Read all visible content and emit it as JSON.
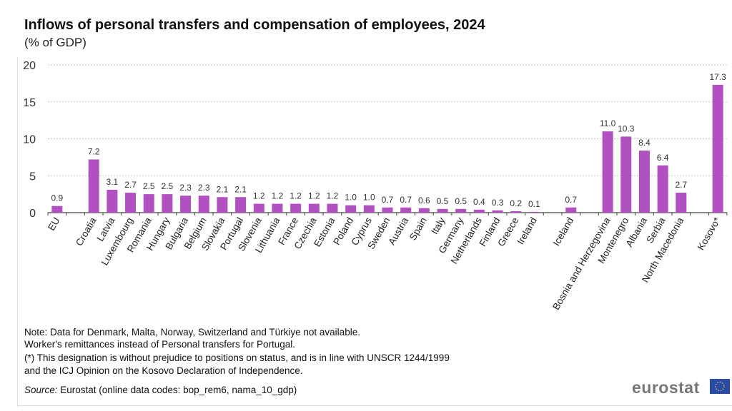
{
  "chart_data": {
    "type": "bar",
    "title": "Inflows of personal transfers and compensation of employees, 2024",
    "ylabel": "(% of GDP)",
    "ylim": [
      0,
      20
    ],
    "yticks": [
      0,
      5,
      10,
      15,
      20
    ],
    "grid": true,
    "bar_color": "#b150c0",
    "categories": [
      "EU",
      null,
      "Croatia",
      "Latvia",
      "Luxembourg",
      "Romania",
      "Hungary",
      "Bulgaria",
      "Belgium",
      "Slovakia",
      "Portugal",
      "Slovenia",
      "Lithuania",
      "France",
      "Czechia",
      "Estonia",
      "Poland",
      "Cyprus",
      "Sweden",
      "Austria",
      "Spain",
      "Italy",
      "Germany",
      "Netherlands",
      "Finland",
      "Greece",
      "Ireland",
      null,
      "Iceland",
      null,
      "Bosnia and Herzegovina",
      "Montenegro",
      "Albania",
      "Serbia",
      "North Macedonia",
      null,
      "Kosovo*"
    ],
    "values": [
      0.9,
      null,
      7.2,
      3.1,
      2.7,
      2.5,
      2.5,
      2.3,
      2.3,
      2.1,
      2.1,
      1.2,
      1.2,
      1.2,
      1.2,
      1.2,
      1.0,
      1.0,
      0.7,
      0.7,
      0.6,
      0.5,
      0.5,
      0.4,
      0.3,
      0.2,
      0.1,
      null,
      0.7,
      null,
      11.0,
      10.3,
      8.4,
      6.4,
      2.7,
      null,
      17.3
    ],
    "labels": [
      "0.9",
      null,
      "7.2",
      "3.1",
      "2.7",
      "2.5",
      "2.5",
      "2.3",
      "2.3",
      "2.1",
      "2.1",
      "1.2",
      "1.2",
      "1.2",
      "1.2",
      "1.2",
      "1.0",
      "1.0",
      "0.7",
      "0.7",
      "0.6",
      "0.5",
      "0.5",
      "0.4",
      "0.3",
      "0.2",
      "0.1",
      null,
      "0.7",
      null,
      "11.0",
      "10.3",
      "8.4",
      "6.4",
      "2.7",
      null,
      "17.3"
    ]
  },
  "notes": {
    "line1": "Note: Data for Denmark, Malta, Norway, Switzerland and Türkiye not available.",
    "line2": "Worker's remittances instead of Personal transfers for Portugal.",
    "line3": "(*) This designation is without prejudice to positions on status, and is in line with UNSCR 1244/1999",
    "line4": "and the ICJ Opinion on the Kosovo Declaration of Independence.",
    "source_label": "Source:",
    "source_text": " Eurostat (online data codes: bop_rem6, nama_10_gdp)"
  },
  "logo": "eurostat"
}
